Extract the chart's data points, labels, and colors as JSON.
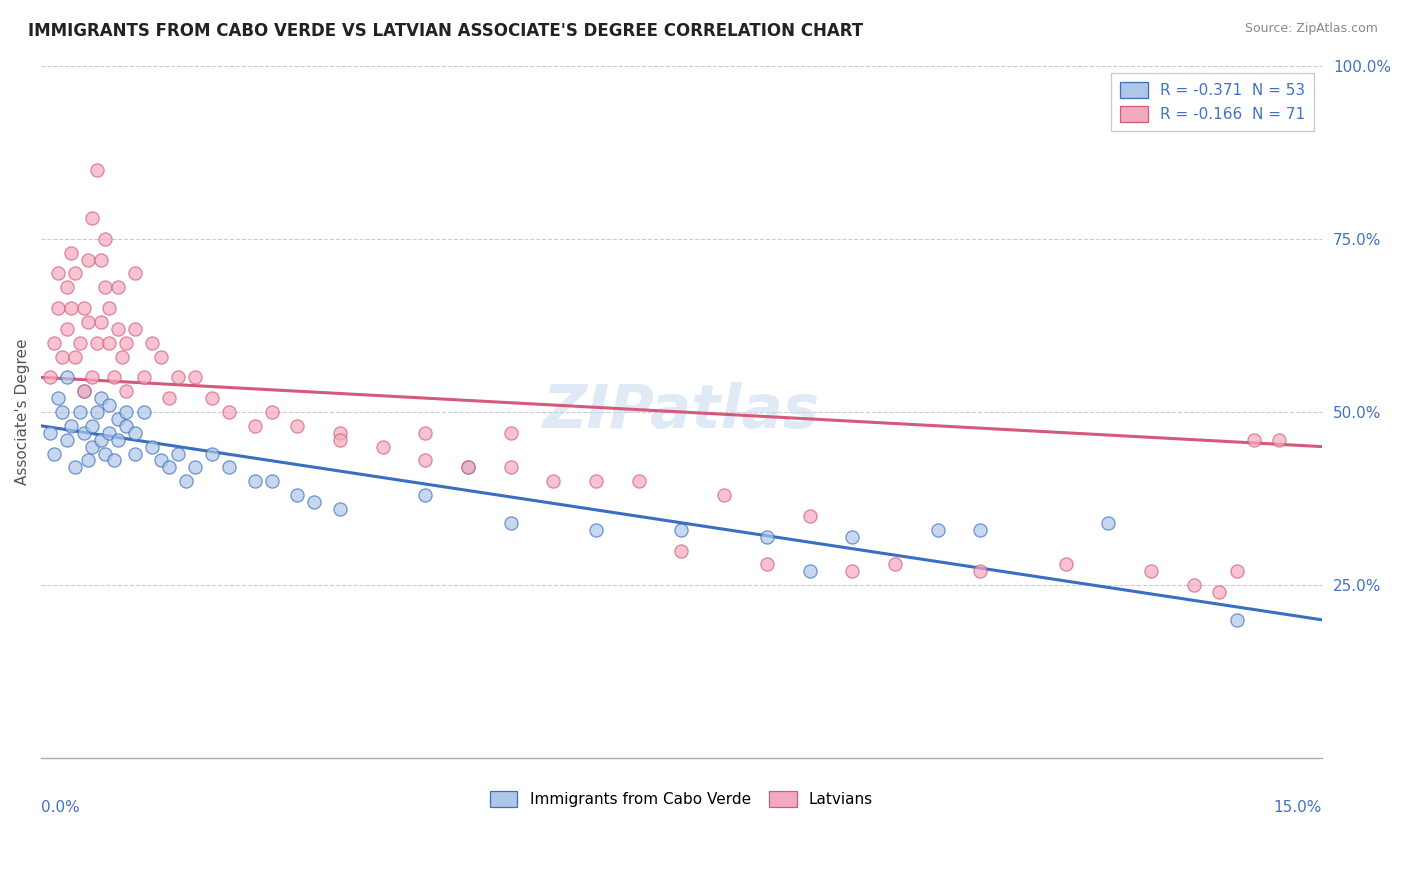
{
  "title": "IMMIGRANTS FROM CABO VERDE VS LATVIAN ASSOCIATE'S DEGREE CORRELATION CHART",
  "source": "Source: ZipAtlas.com",
  "ylabel": "Associate's Degree",
  "xlim": [
    0.0,
    15.0
  ],
  "ylim": [
    0.0,
    100.0
  ],
  "yticks": [
    25.0,
    50.0,
    75.0,
    100.0
  ],
  "ytick_labels": [
    "25.0%",
    "50.0%",
    "75.0%",
    "100.0%"
  ],
  "legend_blue_label": "R = -0.371  N = 53",
  "legend_pink_label": "R = -0.166  N = 71",
  "series1_label": "Immigrants from Cabo Verde",
  "series2_label": "Latvians",
  "color_blue": "#AEC6E8",
  "color_pink": "#F4AABE",
  "line_color_blue": "#3A6EC0",
  "line_color_pink": "#D45A7A",
  "watermark": "ZIPatlas",
  "blue_line_x0": 0.0,
  "blue_line_y0": 48.0,
  "blue_line_x1": 15.0,
  "blue_line_y1": 20.0,
  "pink_line_x0": 0.0,
  "pink_line_y0": 55.0,
  "pink_line_x1": 15.0,
  "pink_line_y1": 45.0,
  "blue_dots_x": [
    0.1,
    0.15,
    0.2,
    0.25,
    0.3,
    0.3,
    0.35,
    0.4,
    0.45,
    0.5,
    0.5,
    0.55,
    0.6,
    0.6,
    0.65,
    0.7,
    0.7,
    0.75,
    0.8,
    0.8,
    0.85,
    0.9,
    0.9,
    1.0,
    1.0,
    1.1,
    1.1,
    1.2,
    1.3,
    1.4,
    1.5,
    1.6,
    1.7,
    1.8,
    2.0,
    2.2,
    2.5,
    2.7,
    3.0,
    3.2,
    3.5,
    4.5,
    5.0,
    5.5,
    6.5,
    7.5,
    8.5,
    9.0,
    9.5,
    10.5,
    11.0,
    12.5,
    14.0
  ],
  "blue_dots_y": [
    47,
    44,
    52,
    50,
    46,
    55,
    48,
    42,
    50,
    47,
    53,
    43,
    45,
    48,
    50,
    46,
    52,
    44,
    47,
    51,
    43,
    46,
    49,
    50,
    48,
    47,
    44,
    50,
    45,
    43,
    42,
    44,
    40,
    42,
    44,
    42,
    40,
    40,
    38,
    37,
    36,
    38,
    42,
    34,
    33,
    33,
    32,
    27,
    32,
    33,
    33,
    34,
    20
  ],
  "pink_dots_x": [
    0.1,
    0.15,
    0.2,
    0.2,
    0.25,
    0.3,
    0.3,
    0.35,
    0.35,
    0.4,
    0.4,
    0.45,
    0.5,
    0.5,
    0.55,
    0.55,
    0.6,
    0.6,
    0.65,
    0.65,
    0.7,
    0.7,
    0.75,
    0.75,
    0.8,
    0.8,
    0.85,
    0.9,
    0.9,
    0.95,
    1.0,
    1.0,
    1.1,
    1.1,
    1.2,
    1.3,
    1.4,
    1.5,
    1.6,
    1.8,
    2.0,
    2.2,
    2.5,
    2.7,
    3.0,
    3.5,
    4.0,
    4.5,
    5.0,
    5.5,
    6.0,
    6.5,
    7.0,
    7.5,
    8.0,
    8.5,
    9.0,
    9.5,
    10.0,
    11.0,
    12.0,
    13.0,
    13.5,
    13.8,
    14.0,
    14.2,
    14.5,
    14.0,
    5.5,
    4.5,
    3.5
  ],
  "pink_dots_y": [
    55,
    60,
    65,
    70,
    58,
    62,
    68,
    65,
    73,
    58,
    70,
    60,
    53,
    65,
    63,
    72,
    55,
    78,
    60,
    85,
    63,
    72,
    68,
    75,
    60,
    65,
    55,
    62,
    68,
    58,
    53,
    60,
    62,
    70,
    55,
    60,
    58,
    52,
    55,
    55,
    52,
    50,
    48,
    50,
    48,
    47,
    45,
    43,
    42,
    42,
    40,
    40,
    40,
    30,
    38,
    28,
    35,
    27,
    28,
    27,
    28,
    27,
    25,
    24,
    95,
    46,
    46,
    27,
    47,
    47,
    46
  ]
}
